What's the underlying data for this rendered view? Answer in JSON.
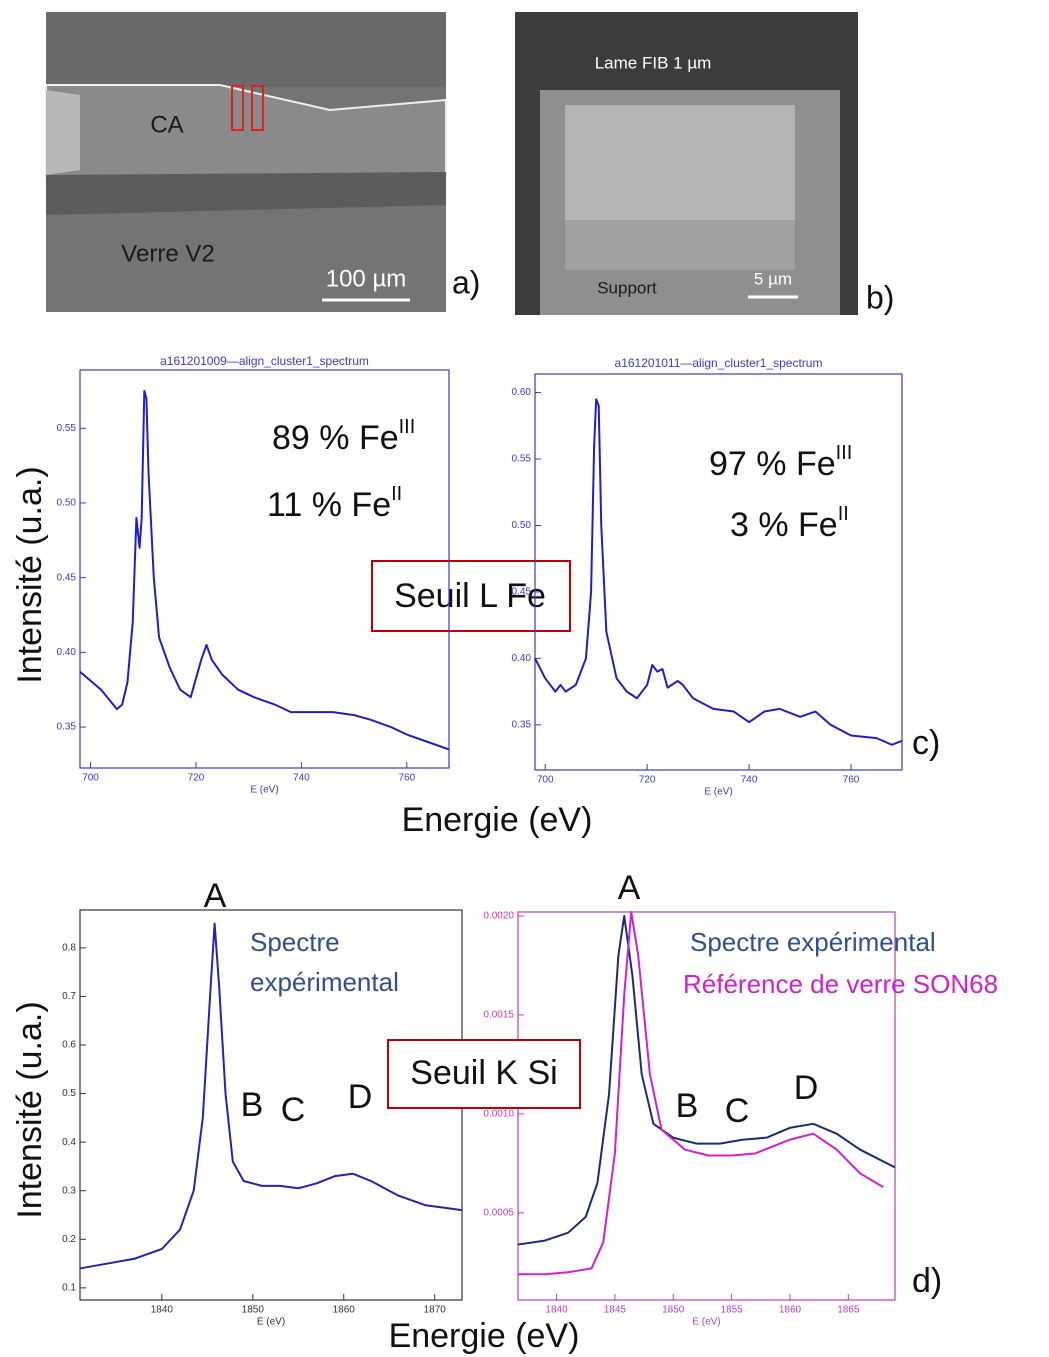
{
  "panel_a": {
    "region": "CA",
    "substrate": "Verre V2",
    "scale": "100 µm",
    "letter": "a)"
  },
  "panel_b": {
    "title": "Lame FIB 1 µm",
    "support": "Support",
    "scale": "5 µm",
    "letter": "b)"
  },
  "panel_c": {
    "y_label": "Intensité (u.a.)",
    "x_label": "Energie (eV)",
    "edge": "Seuil L Fe",
    "letter": "c)"
  },
  "panel_d": {
    "y_label": "Intensité (u.a.)",
    "x_label": "Energie (eV)",
    "edge": "Seuil K Si",
    "letter": "d)"
  },
  "chart_data": [
    {
      "type": "line",
      "title": "a161201009—align_cluster1_spectrum",
      "x_label": "E (eV)",
      "axis_color": "#3a3ad0",
      "xlim": [
        698,
        768
      ],
      "xticks": [
        700,
        720,
        740,
        760
      ],
      "ylim": [
        0.3226,
        0.589
      ],
      "yticks": [
        0.35,
        {
          "value": 0.4,
          "label": "0.40"
        },
        0.45,
        {
          "value": 0.5,
          "label": "0.50"
        },
        0.55
      ],
      "annotations": [
        {
          "text": "89 % Fe",
          "sup": "III"
        },
        {
          "text": "11 % Fe",
          "sup": "II"
        }
      ],
      "series": [
        {
          "color": "#1f1fc8",
          "x": [
            698,
            702,
            705,
            706,
            707,
            708,
            708.7,
            709.3,
            709.7,
            710.2,
            710.6,
            711,
            712,
            713,
            715,
            717,
            719,
            721,
            722,
            723,
            725,
            728,
            731,
            735,
            738,
            742,
            746,
            750,
            753,
            757,
            760,
            764,
            768
          ],
          "values": [
            0.387,
            0.375,
            0.362,
            0.365,
            0.38,
            0.42,
            0.49,
            0.47,
            0.49,
            0.575,
            0.57,
            0.52,
            0.45,
            0.41,
            0.39,
            0.375,
            0.37,
            0.395,
            0.405,
            0.395,
            0.385,
            0.375,
            0.37,
            0.365,
            0.36,
            0.36,
            0.36,
            0.358,
            0.355,
            0.35,
            0.345,
            0.34,
            0.335
          ]
        }
      ]
    },
    {
      "type": "line",
      "title": "a161201011—align_cluster1_spectrum",
      "x_label": "E (eV)",
      "axis_color": "#3a3ad0",
      "xlim": [
        698,
        770
      ],
      "xticks": [
        700,
        720,
        740,
        760
      ],
      "ylim": [
        0.316,
        0.614
      ],
      "yticks": [
        0.35,
        {
          "value": 0.4,
          "label": "0.40"
        },
        0.45,
        {
          "value": 0.5,
          "label": "0.50"
        },
        0.55,
        {
          "value": 0.6,
          "label": "0.60"
        }
      ],
      "annotations": [
        {
          "text": "97 % Fe",
          "sup": "III"
        },
        {
          "text": "3 % Fe",
          "sup": "II"
        }
      ],
      "series": [
        {
          "color": "#1f1fc8",
          "x": [
            698,
            700,
            702,
            703,
            704,
            706,
            708,
            709,
            709.6,
            710,
            710.5,
            711,
            712,
            714,
            716,
            718,
            720,
            721,
            722,
            723,
            724,
            726,
            727,
            729,
            733,
            737,
            740,
            743,
            746,
            750,
            753,
            756,
            760,
            765,
            768,
            770
          ],
          "values": [
            0.4,
            0.385,
            0.375,
            0.38,
            0.375,
            0.38,
            0.4,
            0.45,
            0.56,
            0.595,
            0.59,
            0.5,
            0.42,
            0.385,
            0.375,
            0.37,
            0.38,
            0.395,
            0.39,
            0.392,
            0.378,
            0.383,
            0.38,
            0.37,
            0.362,
            0.36,
            0.352,
            0.36,
            0.362,
            0.356,
            0.36,
            0.35,
            0.342,
            0.34,
            0.335,
            0.338
          ]
        }
      ]
    },
    {
      "type": "line",
      "x_label": "E (eV)",
      "axis_color": "#333333",
      "xlim": [
        1831,
        1873
      ],
      "xticks": [
        1840,
        1850,
        1860,
        1870
      ],
      "ylim": [
        0.075,
        0.878
      ],
      "yticks": [
        0.1,
        0.2,
        0.3,
        0.4,
        0.5,
        0.6,
        0.7,
        0.8
      ],
      "peaks": [
        "A",
        "B",
        "C",
        "D"
      ],
      "series": [
        {
          "name": "Spectre expérimental",
          "color": "#2323b5",
          "x": [
            1831,
            1834,
            1837,
            1840,
            1842,
            1843.5,
            1844.5,
            1845.3,
            1845.8,
            1846.3,
            1847,
            1847.8,
            1849,
            1851,
            1853,
            1855,
            1857,
            1859,
            1861,
            1863,
            1866,
            1869,
            1873
          ],
          "values": [
            0.14,
            0.15,
            0.16,
            0.18,
            0.22,
            0.3,
            0.45,
            0.7,
            0.85,
            0.72,
            0.5,
            0.36,
            0.32,
            0.31,
            0.31,
            0.305,
            0.315,
            0.33,
            0.335,
            0.32,
            0.29,
            0.27,
            0.26
          ]
        }
      ]
    },
    {
      "type": "line",
      "x_label": "E (eV)",
      "axis_color": "#c23ac2",
      "xlim": [
        1836.7,
        1869
      ],
      "xticks": [
        1840,
        1845,
        1850,
        1855,
        1860,
        1865
      ],
      "ylim": [
        6e-05,
        0.00202
      ],
      "yticks": [
        0.0005,
        {
          "value": 0.001,
          "label": "0.0010"
        },
        0.0015,
        {
          "value": 0.002,
          "label": "0.0020"
        }
      ],
      "peaks": [
        "A",
        "B",
        "C",
        "D"
      ],
      "series": [
        {
          "name": "Spectre expérimental",
          "color": "#1c2a7a",
          "x": [
            1836.7,
            1839,
            1841,
            1842.5,
            1843.5,
            1844.5,
            1845.3,
            1845.8,
            1846.5,
            1847.3,
            1848.3,
            1850,
            1852,
            1854,
            1856,
            1858,
            1860,
            1862,
            1864,
            1866,
            1869
          ],
          "values": [
            0.00034,
            0.00036,
            0.0004,
            0.00048,
            0.00065,
            0.0011,
            0.0018,
            0.002,
            0.0017,
            0.0012,
            0.00095,
            0.00088,
            0.00085,
            0.00085,
            0.00087,
            0.00088,
            0.00093,
            0.00095,
            0.0009,
            0.00082,
            0.00073
          ]
        },
        {
          "name": "Référence de  verre SON68",
          "color": "#d020d0",
          "x": [
            1836.7,
            1839,
            1841,
            1843,
            1844,
            1845,
            1845.8,
            1846.4,
            1847,
            1848,
            1849,
            1851,
            1853,
            1855,
            1857,
            1860,
            1862,
            1864,
            1866,
            1868
          ],
          "values": [
            0.00019,
            0.00019,
            0.0002,
            0.00022,
            0.00035,
            0.0008,
            0.0016,
            0.00202,
            0.0018,
            0.0012,
            0.00092,
            0.00082,
            0.00079,
            0.00079,
            0.0008,
            0.00087,
            0.0009,
            0.00082,
            0.0007,
            0.00063
          ]
        }
      ]
    }
  ]
}
